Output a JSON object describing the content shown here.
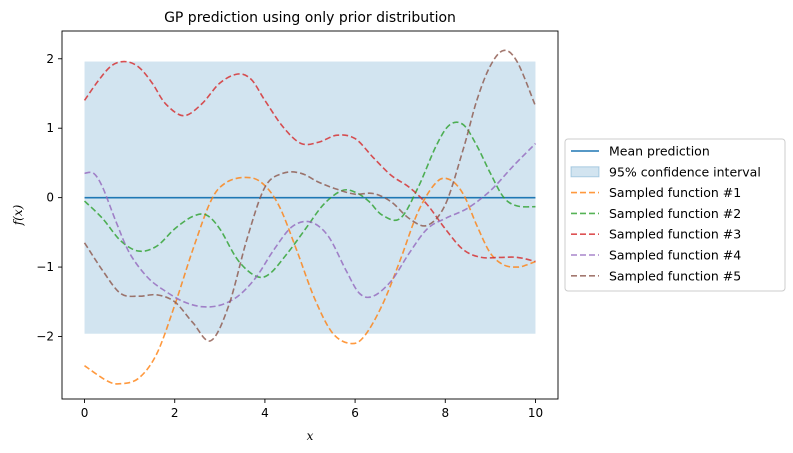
{
  "chart_data": {
    "type": "line",
    "title": "GP prediction using only prior distribution",
    "xlabel": "x",
    "ylabel": "f(x)",
    "xlim": [
      -0.5,
      10.5
    ],
    "ylim": [
      -2.9,
      2.4
    ],
    "xticks": [
      0,
      2,
      4,
      6,
      8,
      10
    ],
    "yticks": [
      -2,
      -1,
      0,
      1,
      2
    ],
    "grid": false,
    "legend_position": "right, outside plot",
    "mean": {
      "name": "Mean prediction",
      "color": "#1f77b4",
      "x": [
        0,
        10
      ],
      "y": [
        0,
        0
      ]
    },
    "confidence_interval": {
      "name": "95% confidence interval",
      "color": "#1f77b4",
      "opacity": 0.2,
      "x": [
        0,
        10
      ],
      "lower": [
        -1.96,
        -1.96
      ],
      "upper": [
        1.96,
        1.96
      ]
    },
    "series": [
      {
        "name": "Sampled function #1",
        "color": "#ff7f0e",
        "x": [
          0,
          0.5,
          0.8,
          1.2,
          1.6,
          2.0,
          2.4,
          2.8,
          3.1,
          3.5,
          3.9,
          4.3,
          4.7,
          5.1,
          5.5,
          5.9,
          6.2,
          6.6,
          7.0,
          7.4,
          7.8,
          8.1,
          8.4,
          8.7,
          9.0,
          9.3,
          9.6,
          9.8,
          10.0
        ],
        "y": [
          -2.42,
          -2.64,
          -2.68,
          -2.6,
          -2.25,
          -1.55,
          -0.75,
          -0.05,
          0.2,
          0.29,
          0.23,
          -0.1,
          -0.75,
          -1.45,
          -1.95,
          -2.1,
          -2.0,
          -1.55,
          -0.9,
          -0.2,
          0.22,
          0.26,
          0.05,
          -0.4,
          -0.8,
          -0.97,
          -1.0,
          -0.97,
          -0.92
        ]
      },
      {
        "name": "Sampled function #2",
        "color": "#2ca02c",
        "x": [
          0,
          0.4,
          0.8,
          1.2,
          1.6,
          2.0,
          2.4,
          2.7,
          3.0,
          3.4,
          3.8,
          4.1,
          4.5,
          4.9,
          5.3,
          5.7,
          6.0,
          6.3,
          6.6,
          7.0,
          7.4,
          7.8,
          8.1,
          8.4,
          8.7,
          9.0,
          9.3,
          9.6,
          10.0
        ],
        "y": [
          -0.05,
          -0.3,
          -0.62,
          -0.77,
          -0.7,
          -0.45,
          -0.27,
          -0.25,
          -0.45,
          -0.9,
          -1.13,
          -1.1,
          -0.8,
          -0.45,
          -0.1,
          0.1,
          0.08,
          -0.05,
          -0.25,
          -0.3,
          0.15,
          0.75,
          1.05,
          1.05,
          0.75,
          0.35,
          0.0,
          -0.12,
          -0.13
        ]
      },
      {
        "name": "Sampled function #3",
        "color": "#d62728",
        "x": [
          0,
          0.3,
          0.6,
          0.9,
          1.2,
          1.5,
          1.8,
          2.2,
          2.6,
          3.0,
          3.4,
          3.7,
          4.0,
          4.4,
          4.8,
          5.2,
          5.6,
          6.0,
          6.4,
          6.8,
          7.2,
          7.6,
          8.0,
          8.4,
          8.8,
          9.2,
          9.6,
          10.0
        ],
        "y": [
          1.4,
          1.68,
          1.9,
          1.96,
          1.88,
          1.65,
          1.35,
          1.18,
          1.35,
          1.65,
          1.78,
          1.7,
          1.4,
          1.02,
          0.78,
          0.8,
          0.9,
          0.85,
          0.58,
          0.32,
          0.15,
          -0.1,
          -0.45,
          -0.75,
          -0.86,
          -0.86,
          -0.86,
          -0.92
        ]
      },
      {
        "name": "Sampled function #4",
        "color": "#9467bd",
        "x": [
          0,
          0.2,
          0.4,
          0.7,
          1.0,
          1.4,
          1.8,
          2.2,
          2.6,
          3.0,
          3.4,
          3.8,
          4.2,
          4.6,
          5.0,
          5.4,
          5.8,
          6.1,
          6.4,
          6.8,
          7.2,
          7.6,
          8.0,
          8.5,
          9.0,
          9.5,
          10.0
        ],
        "y": [
          0.35,
          0.35,
          0.15,
          -0.35,
          -0.8,
          -1.15,
          -1.35,
          -1.5,
          -1.57,
          -1.55,
          -1.42,
          -1.15,
          -0.75,
          -0.42,
          -0.35,
          -0.55,
          -1.05,
          -1.38,
          -1.42,
          -1.2,
          -0.8,
          -0.45,
          -0.3,
          -0.15,
          0.1,
          0.45,
          0.78
        ]
      },
      {
        "name": "Sampled function #5",
        "color": "#8c564b",
        "x": [
          0,
          0.4,
          0.8,
          1.2,
          1.6,
          2.0,
          2.4,
          2.8,
          3.2,
          3.6,
          4.0,
          4.4,
          4.8,
          5.2,
          5.6,
          6.0,
          6.4,
          6.8,
          7.2,
          7.6,
          8.0,
          8.4,
          8.7,
          9.0,
          9.3,
          9.6,
          10.0
        ],
        "y": [
          -0.65,
          -1.05,
          -1.38,
          -1.42,
          -1.4,
          -1.5,
          -1.8,
          -2.06,
          -1.55,
          -0.6,
          0.15,
          0.35,
          0.35,
          0.22,
          0.12,
          0.05,
          0.06,
          -0.06,
          -0.3,
          -0.4,
          -0.1,
          0.7,
          1.4,
          1.9,
          2.12,
          1.95,
          1.32
        ]
      }
    ]
  }
}
